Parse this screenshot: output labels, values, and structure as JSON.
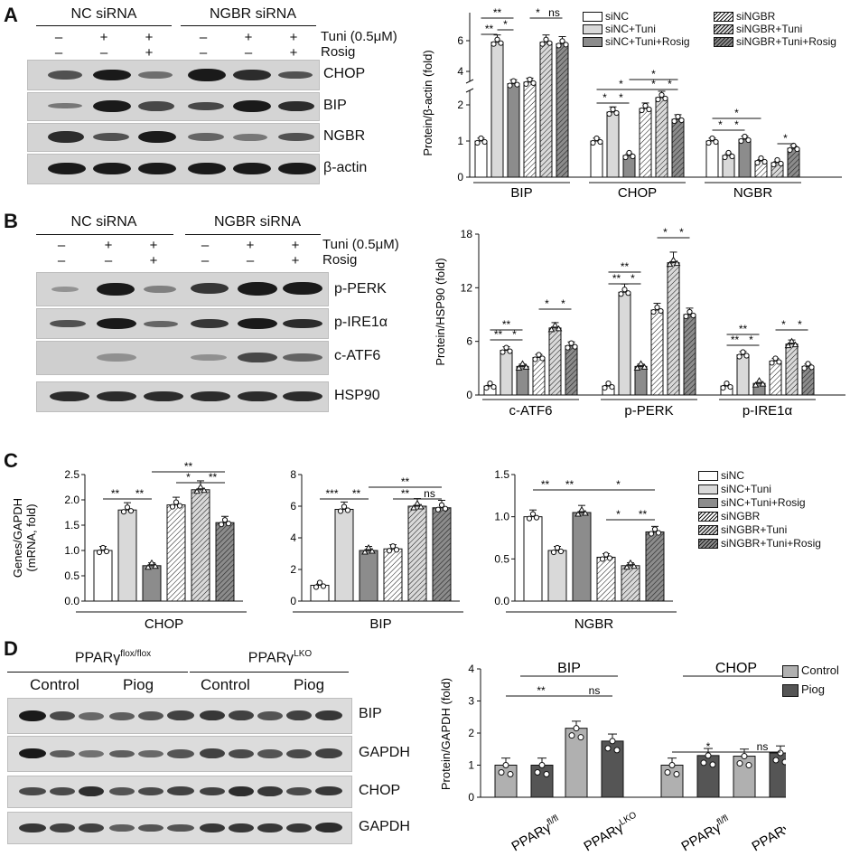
{
  "panels": {
    "A": "A",
    "B": "B",
    "C": "C",
    "D": "D"
  },
  "panelA": {
    "groups": [
      "NC siRNA",
      "NGBR siRNA"
    ],
    "tuni_label": "Tuni (0.5μM)",
    "rosig_label": "Rosig",
    "tuni_marks": [
      "–",
      "+",
      "+",
      "–",
      "+",
      "+"
    ],
    "rosig_marks": [
      "–",
      "–",
      "+",
      "–",
      "–",
      "+"
    ],
    "blots": [
      "CHOP",
      "BIP",
      "NGBR",
      "β-actin"
    ]
  },
  "panelB": {
    "groups": [
      "NC siRNA",
      "NGBR siRNA"
    ],
    "tuni_label": "Tuni (0.5μM)",
    "rosig_label": "Rosig",
    "tuni_marks": [
      "–",
      "+",
      "+",
      "–",
      "+",
      "+"
    ],
    "rosig_marks": [
      "–",
      "–",
      "+",
      "–",
      "–",
      "+"
    ],
    "blots": [
      "p-PERK",
      "p-IRE1α",
      "c-ATF6",
      "HSP90"
    ]
  },
  "panelD": {
    "groups": [
      "PPARγ",
      "PPARγ"
    ],
    "group_sup": [
      "flox/flox",
      "LKO"
    ],
    "sub": [
      "Control",
      "Piog",
      "Control",
      "Piog"
    ],
    "blots": [
      "BIP",
      "GAPDH",
      "CHOP",
      "GAPDH"
    ]
  },
  "legendA": [
    "siNC",
    "siNC+Tuni",
    "siNC+Tuni+Rosig",
    "siNGBR",
    "siNGBR+Tuni",
    "siNGBR+Tuni+Rosig"
  ],
  "legendC": [
    "siNC",
    "siNC+Tuni",
    "siNC+Tuni+Rosig",
    "siNGBR",
    "siNGBR+Tuni",
    "siNGBR+Tuni+Rosig"
  ],
  "legendD": [
    "Control",
    "Piog"
  ],
  "colors": {
    "siNC": "#ffffff",
    "siNC_Tuni": "#d9d9d9",
    "siNC_Tuni_Rosig": "#8c8c8c",
    "Control": "#b0b0b0",
    "Piog": "#555555"
  },
  "chart_data": [
    {
      "id": "A",
      "type": "bar",
      "ylabel": "Protein/β-actin (fold)",
      "categories": [
        "BIP",
        "CHOP",
        "NGBR"
      ],
      "series_names": [
        "siNC",
        "siNC+Tuni",
        "siNC+Tuni+Rosig",
        "siNGBR",
        "siNGBR+Tuni",
        "siNGBR+Tuni+Rosig"
      ],
      "values": [
        [
          1.0,
          5.9,
          3.2,
          3.3,
          5.9,
          5.8
        ],
        [
          1.0,
          1.8,
          0.6,
          1.9,
          2.2,
          1.6
        ],
        [
          1.0,
          0.6,
          1.05,
          0.45,
          0.4,
          0.8
        ]
      ],
      "yticks": [
        "0",
        "1",
        "2",
        "4",
        "6"
      ],
      "axis_break": true,
      "sig_labels": [
        "**",
        "**",
        "*",
        "*",
        "ns",
        "*",
        "*",
        "*",
        "*",
        "*",
        "*",
        "*",
        "*",
        "*",
        "*"
      ]
    },
    {
      "id": "B",
      "type": "bar",
      "ylabel": "Protein/HSP90 (fold)",
      "categories": [
        "c-ATF6",
        "p-PERK",
        "p-IRE1α"
      ],
      "series_names": [
        "siNC",
        "siNC+Tuni",
        "siNC+Tuni+Rosig",
        "siNGBR",
        "siNGBR+Tuni",
        "siNGBR+Tuni+Rosig"
      ],
      "values": [
        [
          1.0,
          5.0,
          3.2,
          4.2,
          7.5,
          5.5
        ],
        [
          1.0,
          11.5,
          3.2,
          9.5,
          14.8,
          9.0
        ],
        [
          1.0,
          4.5,
          1.3,
          3.8,
          5.7,
          3.2
        ]
      ],
      "ylim": [
        0,
        18
      ],
      "yticks": [
        "0",
        "6",
        "12",
        "18"
      ],
      "sig_labels": [
        "**",
        "**",
        "*",
        "*",
        "*",
        "**",
        "**",
        "*",
        "*",
        "*",
        "**",
        "**",
        "*",
        "*",
        "*"
      ]
    },
    {
      "id": "C1",
      "type": "bar",
      "ylabel": "Genes/GAPDH (mRNA, fold)",
      "categories": [
        "CHOP"
      ],
      "series_names": [
        "siNC",
        "siNC+Tuni",
        "siNC+Tuni+Rosig",
        "siNGBR",
        "siNGBR+Tuni",
        "siNGBR+Tuni+Rosig"
      ],
      "values": [
        [
          1.0,
          1.8,
          0.7,
          1.9,
          2.2,
          1.55
        ]
      ],
      "ylim": [
        0,
        2.5
      ],
      "yticks": [
        "0.0",
        "0.5",
        "1.0",
        "1.5",
        "2.0",
        "2.5"
      ],
      "sig_labels": [
        "**",
        "**",
        "**",
        "*",
        "**"
      ]
    },
    {
      "id": "C2",
      "type": "bar",
      "categories": [
        "BIP"
      ],
      "series_names": [
        "siNC",
        "siNC+Tuni",
        "siNC+Tuni+Rosig",
        "siNGBR",
        "siNGBR+Tuni",
        "siNGBR+Tuni+Rosig"
      ],
      "values": [
        [
          1.0,
          5.8,
          3.2,
          3.3,
          6.0,
          5.9
        ]
      ],
      "ylim": [
        0,
        8
      ],
      "yticks": [
        "0",
        "2",
        "4",
        "6",
        "8"
      ],
      "sig_labels": [
        "***",
        "**",
        "**",
        "**",
        "ns"
      ]
    },
    {
      "id": "C3",
      "type": "bar",
      "categories": [
        "NGBR"
      ],
      "series_names": [
        "siNC",
        "siNC+Tuni",
        "siNC+Tuni+Rosig",
        "siNGBR",
        "siNGBR+Tuni",
        "siNGBR+Tuni+Rosig"
      ],
      "values": [
        [
          1.0,
          0.6,
          1.05,
          0.52,
          0.42,
          0.82
        ]
      ],
      "ylim": [
        0,
        1.5
      ],
      "yticks": [
        "0.0",
        "0.5",
        "1.0",
        "1.5"
      ],
      "sig_labels": [
        "**",
        "**",
        "*",
        "*",
        "**"
      ]
    },
    {
      "id": "D",
      "type": "bar",
      "ylabel": "Protein/GAPDH (fold)",
      "categories": [
        "BIP",
        "CHOP"
      ],
      "subgroups": [
        "PPARγ",
        "PPARγ"
      ],
      "subgroup_sup": [
        "fl/fl",
        "LKO"
      ],
      "series_names": [
        "Control",
        "Piog"
      ],
      "values": [
        [
          1.0,
          1.0,
          2.15,
          1.75
        ],
        [
          1.0,
          1.3,
          1.28,
          1.38
        ]
      ],
      "ylim": [
        0,
        4
      ],
      "yticks": [
        "0",
        "1",
        "2",
        "3",
        "4"
      ],
      "sig_labels": [
        "**",
        "ns",
        "*",
        "ns"
      ]
    }
  ]
}
